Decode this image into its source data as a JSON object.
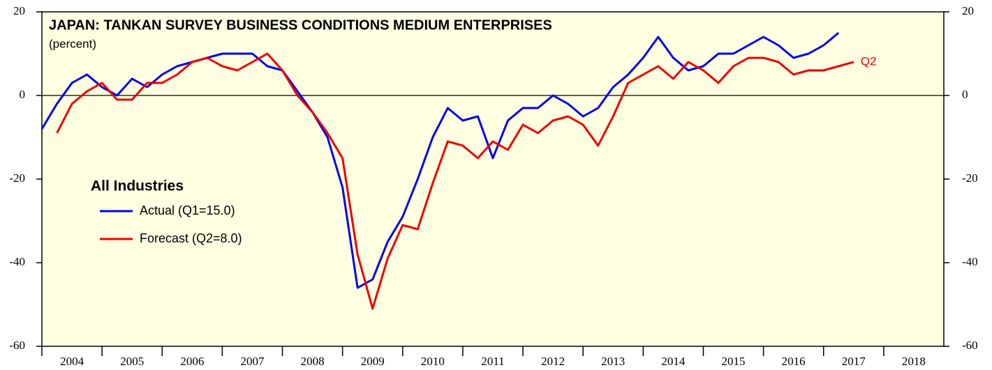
{
  "chart_data": {
    "type": "line",
    "title": "JAPAN: TANKAN SURVEY BUSINESS CONDITIONS MEDIUM ENTERPRISES",
    "subtitle": "(percent)",
    "legend_title": "All Industries",
    "annotation": "Q2",
    "x": [
      2004,
      2004.25,
      2004.5,
      2004.75,
      2005,
      2005.25,
      2005.5,
      2005.75,
      2006,
      2006.25,
      2006.5,
      2006.75,
      2007,
      2007.25,
      2007.5,
      2007.75,
      2008,
      2008.25,
      2008.5,
      2008.75,
      2009,
      2009.25,
      2009.5,
      2009.75,
      2010,
      2010.25,
      2010.5,
      2010.75,
      2011,
      2011.25,
      2011.5,
      2011.75,
      2012,
      2012.25,
      2012.5,
      2012.75,
      2013,
      2013.25,
      2013.5,
      2013.75,
      2014,
      2014.25,
      2014.5,
      2014.75,
      2015,
      2015.25,
      2015.5,
      2015.75,
      2016,
      2016.25,
      2016.5,
      2016.75,
      2017,
      2017.25,
      2017.5
    ],
    "series": [
      {
        "name": "Actual (Q1=15.0)",
        "color": "#0000ee",
        "values": [
          -8,
          -2,
          3,
          5,
          2,
          0,
          4,
          2,
          5,
          7,
          8,
          9,
          10,
          10,
          10,
          7,
          6,
          1,
          -4,
          -10,
          -22,
          -46,
          -44,
          -35,
          -29,
          -20,
          -10,
          -3,
          -6,
          -5,
          -15,
          -6,
          -3,
          -3,
          0,
          -2,
          -5,
          -3,
          2,
          5,
          9,
          14,
          9,
          6,
          7,
          10,
          10,
          12,
          14,
          12,
          9,
          10,
          12,
          15,
          null
        ]
      },
      {
        "name": "Forecast (Q2=8.0)",
        "color": "#ee0000",
        "values": [
          null,
          -9,
          -2,
          1,
          3,
          -1,
          -1,
          3,
          3,
          5,
          8,
          9,
          7,
          6,
          8,
          10,
          6,
          0,
          -4,
          -9,
          -15,
          -38,
          -51,
          -39,
          -31,
          -32,
          -21,
          -11,
          -12,
          -15,
          -11,
          -13,
          -7,
          -9,
          -6,
          -5,
          -7,
          -12,
          -5,
          3,
          5,
          7,
          4,
          8,
          6,
          3,
          7,
          9,
          9,
          8,
          5,
          6,
          6,
          7,
          8
        ]
      }
    ],
    "xlim": [
      2004,
      2019
    ],
    "xticks": [
      2004,
      2005,
      2006,
      2007,
      2008,
      2009,
      2010,
      2011,
      2012,
      2013,
      2014,
      2015,
      2016,
      2017,
      2018
    ],
    "ylim": [
      -60,
      20
    ],
    "yticks": [
      20,
      0,
      -20,
      -40,
      -60
    ],
    "y2lim": [
      -60,
      20
    ],
    "y2ticks": [
      20,
      0,
      -20,
      -40,
      -60
    ]
  }
}
